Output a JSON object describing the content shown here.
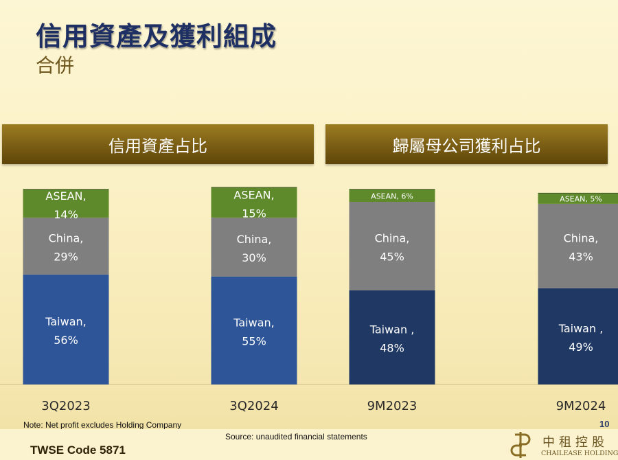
{
  "title": "信用資產及獲利組成",
  "subtitle": "合併",
  "panels": {
    "left_title": "信用資產占比",
    "right_title": "歸屬母公司獲利占比"
  },
  "chart_data": [
    {
      "type": "bar",
      "stacked": true,
      "title": "信用資產占比",
      "categories": [
        "3Q2023",
        "3Q2024"
      ],
      "series": [
        {
          "name": "Taiwan",
          "label": "Taiwan,",
          "values": [
            56,
            55
          ],
          "color": "#2e5597"
        },
        {
          "name": "China",
          "label": "China,",
          "values": [
            29,
            30
          ],
          "color": "#7f7f7f"
        },
        {
          "name": "ASEAN",
          "label": "ASEAN,",
          "values": [
            14,
            15
          ],
          "color": "#5f8a2c"
        }
      ],
      "unit": "%",
      "ylim": [
        0,
        100
      ],
      "grid": false
    },
    {
      "type": "bar",
      "stacked": true,
      "title": "歸屬母公司獲利占比",
      "categories": [
        "9M2023",
        "9M2024"
      ],
      "series": [
        {
          "name": "Taiwan",
          "label": "Taiwan ,",
          "values": [
            48,
            49
          ],
          "color": "#1f3864"
        },
        {
          "name": "China",
          "label": "China,",
          "values": [
            45,
            43
          ],
          "color": "#7f7f7f"
        },
        {
          "name": "ASEAN",
          "label": "ASEAN,",
          "values": [
            6,
            5
          ],
          "color": "#5f8a2c"
        }
      ],
      "unit": "%",
      "ylim": [
        0,
        100
      ],
      "grid": false
    }
  ],
  "footer": {
    "note": "Note: Net profit excludes Holding Company",
    "source": "Source: unaudited financial statements",
    "page_number": "10",
    "code": "TWSE Code 5871",
    "logo_cn": "中租控股",
    "logo_en": "CHAILEASE HOLDING"
  },
  "colors": {
    "title": "#1e2f63",
    "banner": "#7a5d14",
    "taiwan_assets": "#2e5597",
    "taiwan_profit": "#1f3864",
    "china": "#7f7f7f",
    "asean": "#5f8a2c"
  }
}
